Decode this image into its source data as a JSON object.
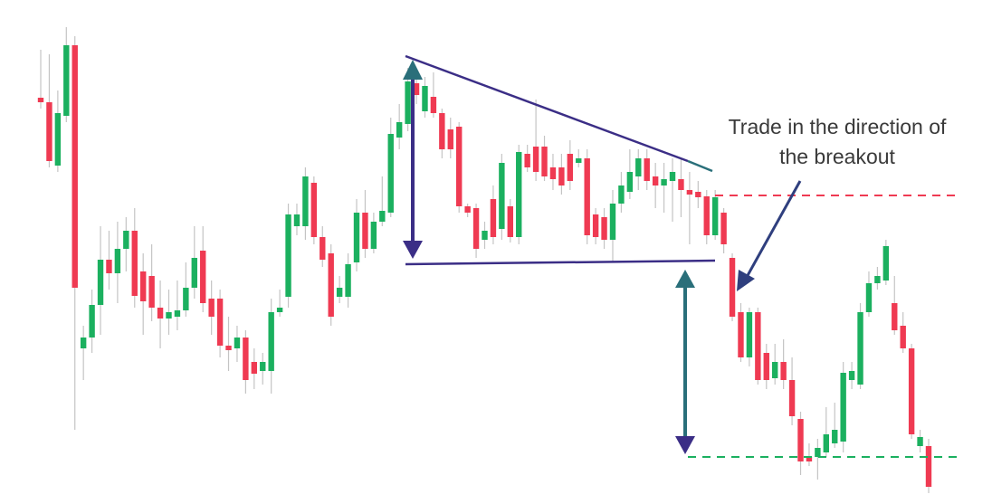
{
  "chart_data": {
    "type": "candlestick",
    "annotation": "Trade in the direction of the breakout",
    "up_color": "#1bb05f",
    "down_color": "#ef3a52",
    "ylim": [
      0,
      557
    ],
    "open": [
      449,
      444,
      374,
      429,
      507,
      172,
      184,
      220,
      270,
      255,
      282,
      302,
      257,
      252,
      217,
      205,
      207,
      214,
      239,
      280,
      227,
      227,
      175,
      172,
      184,
      157,
      147,
      147,
      212,
      229,
      307,
      307,
      355,
      295,
      277,
      229,
      229,
      267,
      322,
      282,
      312,
      322,
      405,
      420,
      465,
      434,
      450,
      432,
      414,
      417,
      329,
      327,
      292,
      337,
      304,
      329,
      295,
      387,
      395,
      395,
      372,
      372,
      387,
      377,
      382,
      320,
      317,
      292,
      332,
      345,
      362,
      382,
      362,
      352,
      357,
      359,
      347,
      345,
      340,
      297,
      322,
      272,
      212,
      162,
      212,
      167,
      139,
      157,
      137,
      94,
      52,
      52,
      57,
      67,
      69,
      137,
      132,
      212,
      244,
      247,
      222,
      197,
      172,
      64,
      64
    ],
    "high": [
      502,
      497,
      457,
      527,
      517,
      197,
      237,
      307,
      302,
      312,
      317,
      327,
      277,
      287,
      247,
      237,
      247,
      267,
      307,
      307,
      247,
      237,
      207,
      197,
      192,
      172,
      167,
      227,
      237,
      332,
      332,
      372,
      362,
      307,
      287,
      252,
      277,
      337,
      347,
      322,
      362,
      427,
      442,
      482,
      477,
      472,
      477,
      437,
      427,
      422,
      332,
      332,
      312,
      352,
      387,
      337,
      397,
      397,
      447,
      407,
      387,
      387,
      402,
      392,
      392,
      327,
      327,
      347,
      367,
      392,
      392,
      392,
      377,
      377,
      382,
      382,
      367,
      357,
      347,
      347,
      327,
      277,
      222,
      217,
      217,
      177,
      177,
      182,
      162,
      102,
      67,
      72,
      107,
      112,
      157,
      157,
      222,
      257,
      262,
      292,
      252,
      212,
      177,
      82,
      72
    ],
    "low": [
      437,
      372,
      367,
      422,
      82,
      137,
      167,
      187,
      237,
      222,
      257,
      217,
      187,
      202,
      172,
      187,
      192,
      207,
      227,
      212,
      187,
      162,
      147,
      157,
      122,
      127,
      132,
      122,
      207,
      217,
      297,
      292,
      287,
      262,
      197,
      222,
      217,
      257,
      272,
      277,
      307,
      317,
      392,
      412,
      442,
      427,
      427,
      382,
      382,
      322,
      317,
      272,
      282,
      287,
      292,
      289,
      287,
      367,
      357,
      357,
      347,
      342,
      347,
      372,
      287,
      287,
      282,
      267,
      322,
      337,
      347,
      347,
      327,
      322,
      312,
      317,
      287,
      327,
      287,
      292,
      277,
      202,
      157,
      152,
      132,
      127,
      132,
      127,
      87,
      32,
      42,
      27,
      52,
      62,
      57,
      127,
      127,
      207,
      237,
      242,
      187,
      167,
      72,
      57,
      12
    ],
    "close": [
      444,
      379,
      432,
      507,
      239,
      184,
      220,
      270,
      255,
      282,
      302,
      230,
      224,
      217,
      205,
      212,
      214,
      239,
      272,
      222,
      207,
      175,
      170,
      184,
      137,
      144,
      157,
      212,
      217,
      320,
      320,
      362,
      295,
      270,
      207,
      239,
      265,
      322,
      282,
      312,
      324,
      409,
      422,
      467,
      452,
      462,
      432,
      392,
      392,
      329,
      322,
      282,
      302,
      295,
      377,
      295,
      389,
      372,
      367,
      362,
      359,
      352,
      357,
      382,
      297,
      295,
      292,
      332,
      352,
      367,
      382,
      357,
      352,
      359,
      367,
      347,
      342,
      339,
      297,
      339,
      287,
      207,
      162,
      212,
      137,
      137,
      157,
      137,
      97,
      47,
      47,
      62,
      77,
      82,
      145,
      147,
      212,
      244,
      252,
      285,
      192,
      172,
      77,
      74,
      19
    ]
  }
}
